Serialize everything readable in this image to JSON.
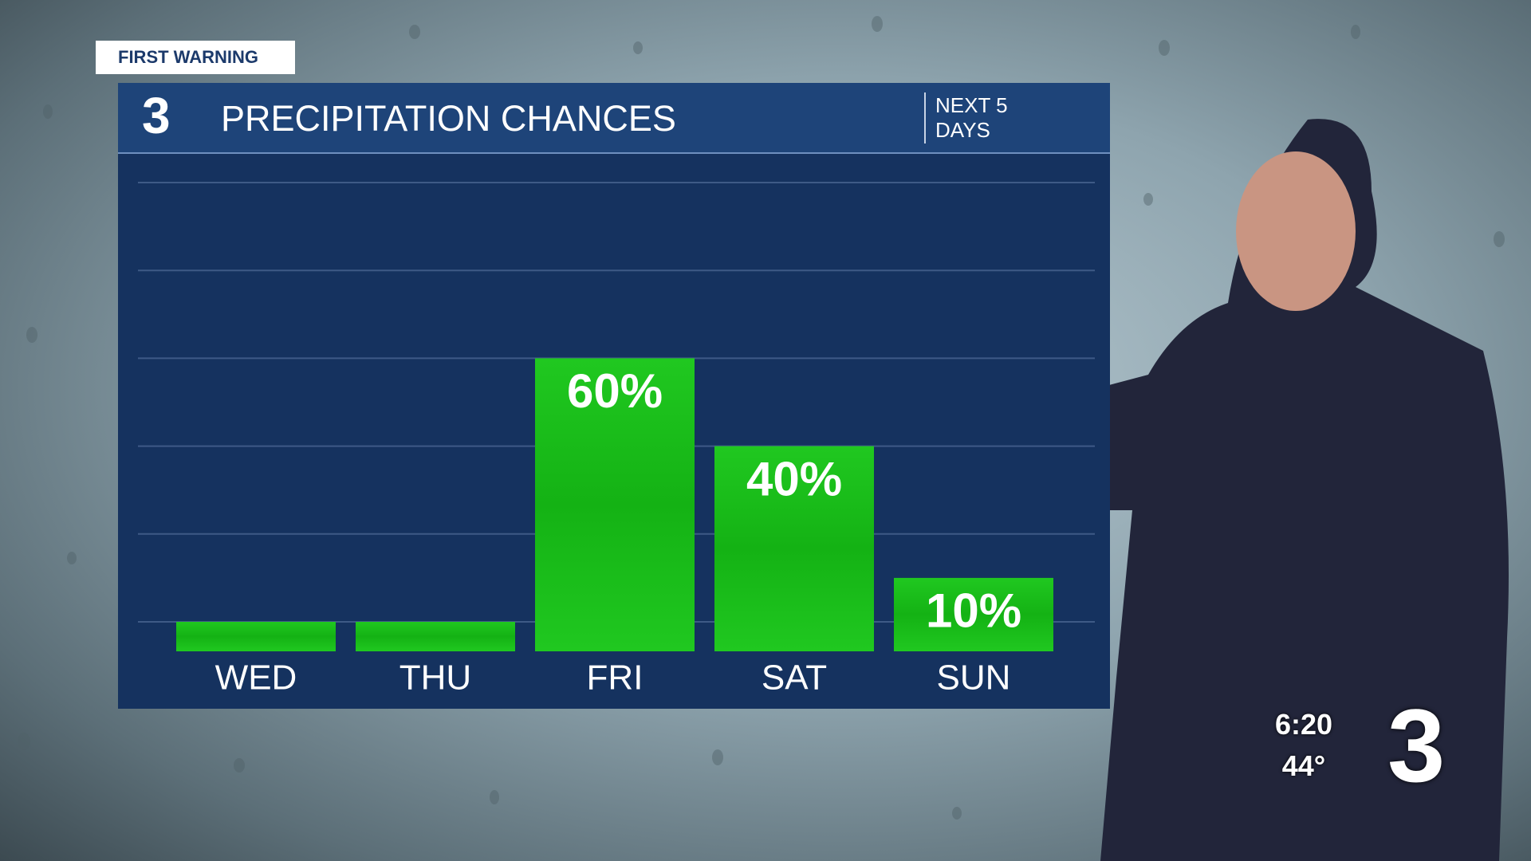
{
  "station_logo": "3",
  "banner": "FIRST WARNING",
  "clock": {
    "time": "6:20",
    "temperature": "44°"
  },
  "chart_data": {
    "type": "bar",
    "title": "PRECIPITATION CHANCES",
    "subtitle": "NEXT 5 DAYS",
    "categories": [
      "WED",
      "THU",
      "FRI",
      "SAT",
      "SUN"
    ],
    "values": [
      0,
      0,
      60,
      40,
      10
    ],
    "value_labels": [
      null,
      null,
      "60%",
      "40%",
      "10%"
    ],
    "color": "#1cc41c",
    "ylim": [
      0,
      100
    ],
    "yticks": [
      0,
      20,
      40,
      60,
      80,
      100
    ],
    "grid": true
  }
}
